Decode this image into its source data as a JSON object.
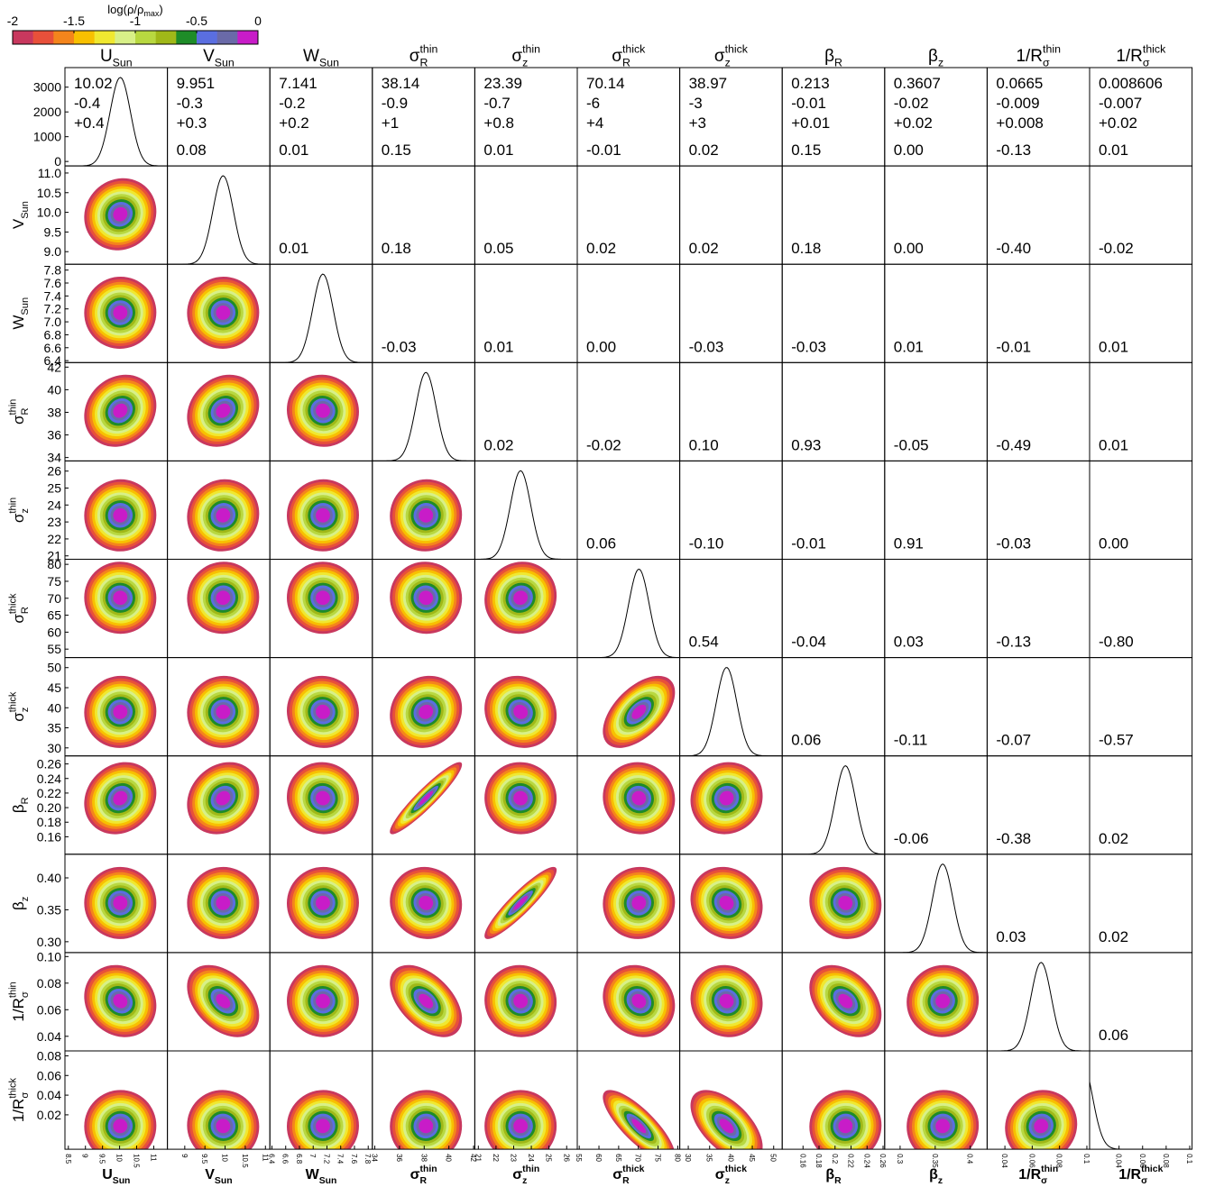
{
  "chart_data": {
    "type": "corner",
    "colorbar": {
      "label": "log(ρ/ρ",
      "label_sub": "max",
      "label_end": ")",
      "lim": [
        -2,
        0
      ],
      "ticks": [
        -2,
        -1.5,
        -1,
        -0.5,
        0
      ],
      "colors": [
        "#c8385e",
        "#e8503a",
        "#f4851c",
        "#f8c000",
        "#f0e830",
        "#d8f088",
        "#b8d840",
        "#a0b818",
        "#1e8c28",
        "#5a6ee0",
        "#6a6aa8",
        "#c81cc8"
      ]
    },
    "hist_ylim": [
      -180,
      3790
    ],
    "hist_yticks": [
      0,
      1000,
      2000,
      3000
    ],
    "parameters": [
      {
        "base": "U",
        "sub": "Sun",
        "best": 10.02,
        "minus": "-0.4",
        "plus": "+0.4",
        "xlim": [
          8.4,
          11.4
        ],
        "xticks": [
          8.5,
          9,
          9.5,
          10,
          10.5,
          11
        ]
      },
      {
        "base": "V",
        "sub": "Sun",
        "best": 9.951,
        "minus": "-0.3",
        "plus": "+0.3",
        "xlim": [
          8.57,
          11.11
        ],
        "ylim": [
          8.68,
          11.18
        ],
        "xticks": [
          9,
          9.5,
          10,
          10.5,
          11
        ],
        "yticks": [
          {
            "value": 9,
            "label": "9.0"
          },
          9.5,
          {
            "value": 10,
            "label": "10.0"
          },
          10.5,
          {
            "value": 11,
            "label": "11.0"
          }
        ]
      },
      {
        "base": "W",
        "sub": "Sun",
        "best": 7.141,
        "minus": "-0.2",
        "plus": "+0.2",
        "xlim": [
          6.37,
          7.86
        ],
        "ylim": [
          6.37,
          7.89
        ],
        "xticks": [
          6.4,
          6.6,
          6.8,
          7,
          7.2,
          7.4,
          7.6,
          7.8
        ],
        "yticks": [
          6.4,
          6.6,
          6.8,
          {
            "value": 7,
            "label": "7.0"
          },
          7.2,
          7.4,
          7.6,
          7.8
        ]
      },
      {
        "base": "σ",
        "sub": "R",
        "sup": "thin",
        "best": 38.14,
        "minus": "-0.9",
        "plus": "+1",
        "xlim": [
          33.8,
          42.1
        ],
        "ylim": [
          33.7,
          42.4
        ],
        "xticks": [
          34,
          36,
          38,
          40,
          42
        ],
        "yticks": [
          34,
          36,
          38,
          40,
          42
        ]
      },
      {
        "base": "σ",
        "sub": "z",
        "sup": "thin",
        "best": 23.39,
        "minus": "-0.7",
        "plus": "+0.8",
        "xlim": [
          20.8,
          26.6
        ],
        "ylim": [
          20.8,
          26.6
        ],
        "xticks": [
          21,
          22,
          23,
          24,
          25,
          26
        ],
        "yticks": [
          21,
          22,
          23,
          24,
          25,
          26
        ]
      },
      {
        "base": "σ",
        "sub": "R",
        "sup": "thick",
        "best": 70.14,
        "minus": "-6",
        "plus": "+4",
        "xlim": [
          54.5,
          80.5
        ],
        "ylim": [
          52.5,
          81.5
        ],
        "xticks": [
          55,
          60,
          65,
          70,
          75,
          80
        ],
        "yticks": [
          55,
          60,
          65,
          70,
          75,
          80
        ]
      },
      {
        "base": "σ",
        "sub": "z",
        "sup": "thick",
        "best": 38.97,
        "minus": "-3",
        "plus": "+3",
        "xlim": [
          28,
          52
        ],
        "ylim": [
          28,
          52.5
        ],
        "xticks": [
          30,
          35,
          40,
          45,
          50
        ],
        "yticks": [
          30,
          35,
          40,
          45,
          50
        ]
      },
      {
        "base": "β",
        "sub": "R",
        "best": 0.213,
        "minus": "-0.01",
        "plus": "+0.01",
        "xlim": [
          0.134,
          0.262
        ],
        "ylim": [
          0.136,
          0.271
        ],
        "xticks": [
          0.16,
          0.18,
          0.2,
          0.22,
          0.24,
          0.26
        ],
        "yticks": [
          0.16,
          0.18,
          {
            "value": 0.2,
            "label": "0.20"
          },
          0.22,
          0.24,
          0.26
        ]
      },
      {
        "base": "β",
        "sub": "z",
        "best": 0.3607,
        "minus": "-0.02",
        "plus": "+0.02",
        "xlim": [
          0.278,
          0.424
        ],
        "ylim": [
          0.283,
          0.437
        ],
        "xticks": [
          0.3,
          0.35,
          0.4
        ],
        "yticks": [
          {
            "value": 0.3,
            "label": "0.30"
          },
          0.35,
          {
            "value": 0.4,
            "label": "0.40"
          }
        ]
      },
      {
        "base": "1/R",
        "sub": "σ",
        "sup": "thin",
        "best": 0.0665,
        "minus": "-0.009",
        "plus": "+0.008",
        "xlim": [
          0.027,
          0.102
        ],
        "ylim": [
          0.029,
          0.103
        ],
        "xticks": [
          0.04,
          0.06,
          0.08,
          0.1
        ],
        "yticks": [
          0.04,
          0.06,
          0.08,
          {
            "value": 0.1,
            "label": "0.10"
          }
        ]
      },
      {
        "base": "1/R",
        "sub": "σ",
        "sup": "thick",
        "best": 0.008606,
        "minus": "-0.007",
        "plus": "+0.02",
        "xlim": [
          0.015,
          0.102
        ],
        "ylim": [
          -0.015,
          0.085
        ],
        "xticks": [
          0.04,
          0.06,
          0.08,
          0.1
        ],
        "yticks": [
          0.02,
          0.04,
          0.06,
          0.08
        ]
      }
    ],
    "correlations": [
      [
        0.08,
        0.01,
        0.15,
        0.01,
        -0.01,
        0.02,
        0.15,
        0,
        -0.13,
        0.01
      ],
      [
        0.01,
        0.18,
        0.05,
        0.02,
        0.02,
        0.18,
        0,
        -0.4,
        -0.02
      ],
      [
        -0.03,
        0.01,
        0,
        -0.03,
        -0.03,
        0.01,
        -0.01,
        0.01
      ],
      [
        0.02,
        -0.02,
        0.1,
        0.93,
        -0.05,
        -0.49,
        0.01
      ],
      [
        0.06,
        -0.1,
        -0.01,
        0.91,
        -0.03,
        0
      ],
      [
        0.54,
        -0.04,
        0.03,
        -0.13,
        -0.8
      ],
      [
        0.06,
        -0.11,
        -0.07,
        -0.57
      ],
      [
        -0.06,
        -0.38,
        0.02
      ],
      [
        0.03,
        0.02
      ],
      [
        0.06
      ]
    ],
    "value_labels": [
      [
        "0.08",
        "0.01",
        "0.15",
        "0.01",
        "-0.01",
        "0.02",
        "0.15",
        "0.00",
        "-0.13",
        "0.01"
      ],
      [
        "0.01",
        "0.18",
        "0.05",
        "0.02",
        "0.02",
        "0.18",
        "0.00",
        "-0.40",
        "-0.02"
      ],
      [
        "-0.03",
        "0.01",
        "0.00",
        "-0.03",
        "-0.03",
        "0.01",
        "-0.01",
        "0.01"
      ],
      [
        "0.02",
        "-0.02",
        "0.10",
        "0.93",
        "-0.05",
        "-0.49",
        "0.01"
      ],
      [
        "0.06",
        "-0.10",
        "-0.01",
        "0.91",
        "-0.03",
        "0.00"
      ],
      [
        "0.54",
        "-0.04",
        "0.03",
        "-0.13",
        "-0.80"
      ],
      [
        "0.06",
        "-0.11",
        "-0.07",
        "-0.57"
      ],
      [
        "-0.06",
        "-0.38",
        "0.02"
      ],
      [
        "0.03",
        "0.02"
      ],
      [
        "0.06"
      ]
    ]
  }
}
